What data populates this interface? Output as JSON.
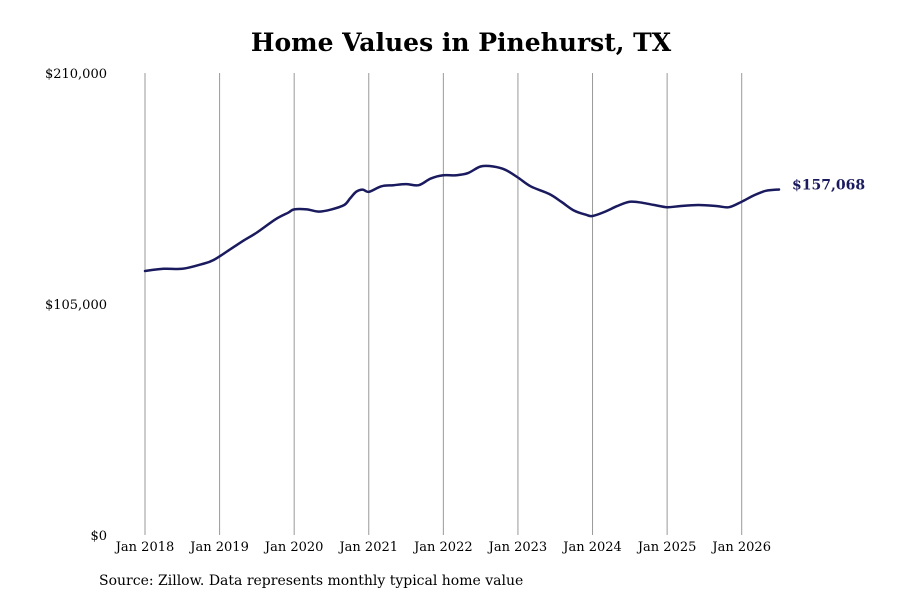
{
  "chart_data": {
    "type": "line",
    "title": "Home Values in Pinehurst, TX",
    "ylim": [
      0,
      210000
    ],
    "yticks": [
      0,
      105000,
      210000
    ],
    "ytick_labels": [
      "$0",
      "$105,000",
      "$210,000"
    ],
    "xlim": [
      2018.0,
      2026.5
    ],
    "xticks": [
      2018,
      2019,
      2020,
      2021,
      2022,
      2023,
      2024,
      2025,
      2026
    ],
    "xtick_labels": [
      "Jan 2018",
      "Jan 2019",
      "Jan 2020",
      "Jan 2021",
      "Jan 2022",
      "Jan 2023",
      "Jan 2024",
      "Jan 2025",
      "Jan 2026"
    ],
    "grid": "vertical",
    "series": [
      {
        "color": "#1a1a5e",
        "x": [
          2018.0,
          2018.25,
          2018.5,
          2018.75,
          2018.92,
          2019.17,
          2019.33,
          2019.5,
          2019.75,
          2019.92,
          2020.0,
          2020.17,
          2020.33,
          2020.5,
          2020.67,
          2020.75,
          2020.83,
          2020.92,
          2021.0,
          2021.17,
          2021.33,
          2021.5,
          2021.67,
          2021.83,
          2022.0,
          2022.17,
          2022.33,
          2022.5,
          2022.67,
          2022.83,
          2023.0,
          2023.17,
          2023.42,
          2023.58,
          2023.75,
          2023.92,
          2024.0,
          2024.17,
          2024.33,
          2024.5,
          2024.67,
          2024.83,
          2025.0,
          2025.17,
          2025.42,
          2025.67,
          2025.83,
          2026.0,
          2026.17,
          2026.33,
          2026.5
        ],
        "y": [
          120000,
          121000,
          121000,
          123000,
          125000,
          130500,
          134000,
          137500,
          143500,
          146500,
          148000,
          148000,
          147000,
          148000,
          150000,
          153000,
          156000,
          157000,
          156000,
          158500,
          159000,
          159500,
          159000,
          162000,
          163500,
          163500,
          164500,
          167500,
          167500,
          166000,
          162500,
          158500,
          155000,
          151500,
          147500,
          145500,
          145000,
          147000,
          149500,
          151500,
          151000,
          150000,
          149000,
          149500,
          150000,
          149500,
          149000,
          151500,
          154500,
          156500,
          157068
        ]
      }
    ],
    "end_label": "$157,068"
  },
  "source": "Source: Zillow. Data represents monthly typical home value"
}
